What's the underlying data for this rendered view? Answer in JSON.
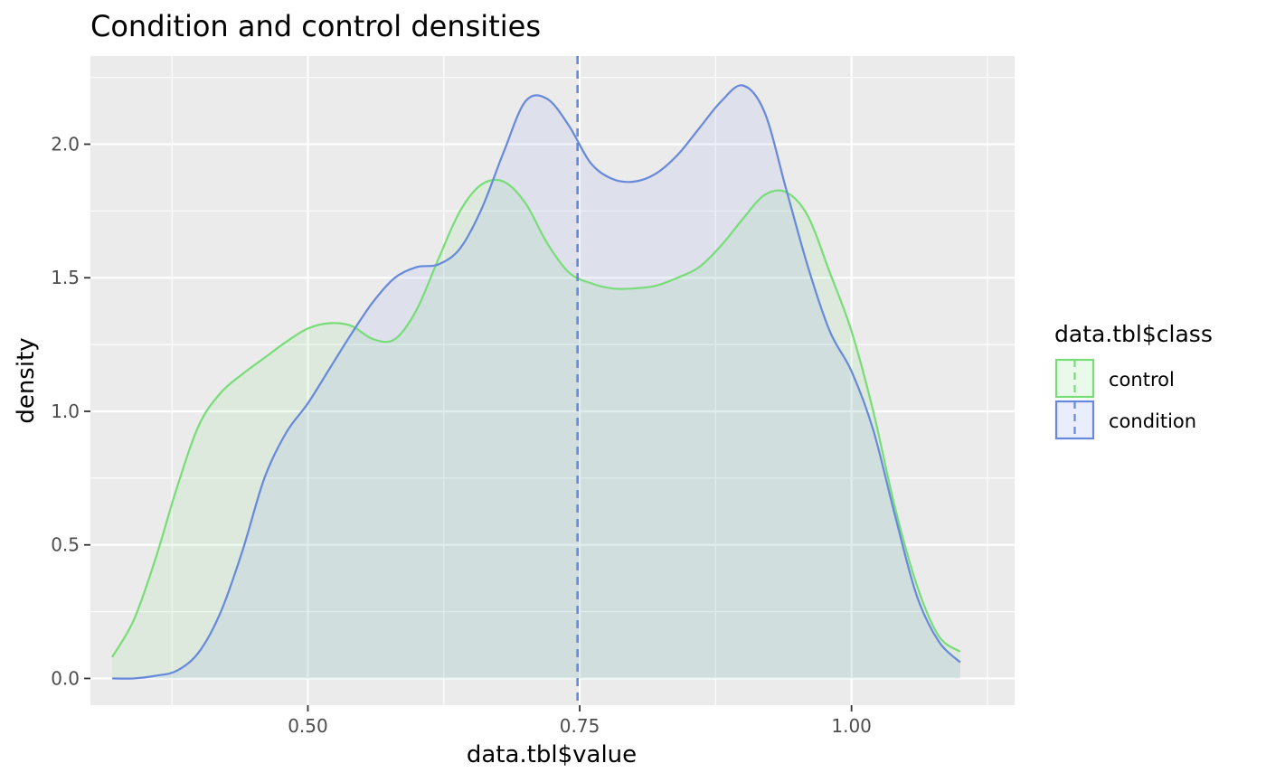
{
  "chart_data": {
    "type": "area",
    "title": "Condition and control densities",
    "xlabel": "data.tbl$value",
    "ylabel": "density",
    "xlim": [
      0.3,
      1.15
    ],
    "ylim": [
      -0.1,
      2.33
    ],
    "x_ticks": [
      0.5,
      0.75,
      1.0
    ],
    "x_tick_labels": [
      "0.50",
      "0.75",
      "1.00"
    ],
    "y_ticks": [
      0.0,
      0.5,
      1.0,
      1.5,
      2.0
    ],
    "y_tick_labels": [
      "0.0",
      "0.5",
      "1.0",
      "1.5",
      "2.0"
    ],
    "grid": true,
    "background": "#ebebeb",
    "legend": {
      "title": "data.tbl$class",
      "position": "right",
      "entries": [
        "control",
        "condition"
      ]
    },
    "vline": {
      "x": 0.748,
      "color": "#6688dd",
      "style": "dashed"
    },
    "series": [
      {
        "name": "control",
        "line_color": "#77dd77",
        "fill_color": "#77dd77",
        "fill_opacity": 0.12,
        "x": [
          0.32,
          0.34,
          0.36,
          0.38,
          0.4,
          0.42,
          0.44,
          0.46,
          0.48,
          0.5,
          0.52,
          0.54,
          0.56,
          0.58,
          0.6,
          0.62,
          0.64,
          0.66,
          0.68,
          0.7,
          0.72,
          0.74,
          0.76,
          0.78,
          0.8,
          0.82,
          0.84,
          0.86,
          0.88,
          0.9,
          0.92,
          0.94,
          0.96,
          0.98,
          1.0,
          1.02,
          1.04,
          1.06,
          1.08,
          1.1
        ],
        "y": [
          0.08,
          0.22,
          0.45,
          0.72,
          0.95,
          1.07,
          1.14,
          1.2,
          1.26,
          1.31,
          1.33,
          1.32,
          1.27,
          1.27,
          1.38,
          1.57,
          1.75,
          1.85,
          1.86,
          1.78,
          1.63,
          1.52,
          1.48,
          1.46,
          1.46,
          1.47,
          1.5,
          1.54,
          1.62,
          1.72,
          1.81,
          1.82,
          1.73,
          1.52,
          1.3,
          1.0,
          0.64,
          0.35,
          0.16,
          0.1
        ]
      },
      {
        "name": "condition",
        "line_color": "#6688dd",
        "fill_color": "#99aaee",
        "fill_opacity": 0.16,
        "x": [
          0.32,
          0.34,
          0.36,
          0.38,
          0.4,
          0.42,
          0.44,
          0.46,
          0.48,
          0.5,
          0.52,
          0.54,
          0.56,
          0.58,
          0.6,
          0.62,
          0.64,
          0.66,
          0.68,
          0.7,
          0.72,
          0.74,
          0.76,
          0.78,
          0.8,
          0.82,
          0.84,
          0.86,
          0.88,
          0.9,
          0.92,
          0.94,
          0.96,
          0.98,
          1.0,
          1.02,
          1.04,
          1.06,
          1.08,
          1.1
        ],
        "y": [
          0.0,
          0.0,
          0.01,
          0.03,
          0.1,
          0.25,
          0.48,
          0.75,
          0.92,
          1.03,
          1.16,
          1.29,
          1.41,
          1.5,
          1.54,
          1.55,
          1.61,
          1.76,
          1.97,
          2.16,
          2.17,
          2.07,
          1.93,
          1.87,
          1.86,
          1.89,
          1.96,
          2.06,
          2.16,
          2.22,
          2.12,
          1.83,
          1.54,
          1.3,
          1.15,
          0.93,
          0.61,
          0.31,
          0.14,
          0.06
        ]
      }
    ]
  }
}
